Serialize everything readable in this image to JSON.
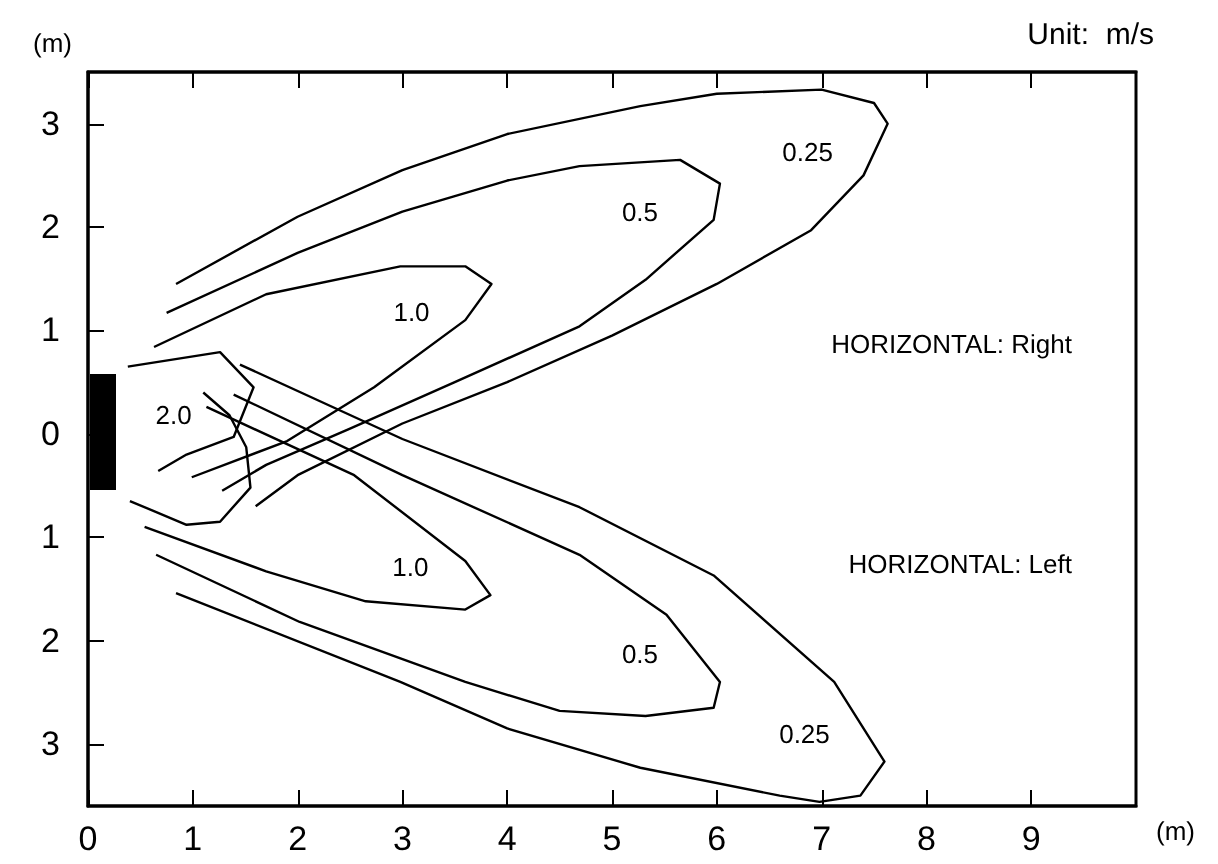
{
  "chart_data": {
    "type": "line",
    "xlabel": "(m)",
    "ylabel": "(m)",
    "marker": "none",
    "xlim": [
      0,
      10
    ],
    "xticks": [
      0,
      1,
      2,
      3,
      4,
      5,
      6,
      7,
      8,
      9
    ],
    "ylim": [
      -3.6,
      3.5
    ],
    "yticks": [
      {
        "value": -3,
        "label": "3"
      },
      {
        "value": -2,
        "label": "2"
      },
      {
        "value": -1,
        "label": "1"
      },
      0,
      1,
      2,
      3
    ],
    "series": [
      {
        "name": "0.25",
        "color": "#000000",
        "x": [
          0.84,
          2.0,
          3.0,
          4.0,
          5.27,
          6.0,
          7.0,
          7.5,
          7.63,
          7.4,
          6.9,
          6.0,
          5.0,
          4.0,
          3.0,
          2.0,
          1.6
        ],
        "values": [
          1.45,
          2.1,
          2.55,
          2.9,
          3.17,
          3.29,
          3.33,
          3.2,
          3.0,
          2.5,
          1.97,
          1.45,
          0.95,
          0.5,
          0.1,
          -0.4,
          -0.7
        ]
      },
      {
        "name": "0.5",
        "color": "#000000",
        "x": [
          0.75,
          2.0,
          3.0,
          4.0,
          4.69,
          5.65,
          6.03,
          5.97,
          5.32,
          4.69,
          3.5,
          2.5,
          1.7,
          1.28
        ],
        "values": [
          1.17,
          1.75,
          2.15,
          2.45,
          2.59,
          2.65,
          2.42,
          2.07,
          1.49,
          1.04,
          0.5,
          0.05,
          -0.3,
          -0.55
        ]
      },
      {
        "name": "1.0",
        "color": "#000000",
        "x": [
          0.63,
          1.7,
          2.98,
          3.6,
          3.85,
          3.6,
          2.73,
          1.9,
          0.99
        ],
        "values": [
          0.84,
          1.35,
          1.62,
          1.62,
          1.45,
          1.1,
          0.45,
          -0.07,
          -0.42
        ]
      },
      {
        "name": "2.0",
        "color": "#000000",
        "x": [
          0.38,
          1.26,
          1.58,
          1.39,
          0.94,
          0.67
        ],
        "values": [
          0.65,
          0.79,
          0.45,
          -0.03,
          -0.2,
          -0.36
        ]
      },
      {
        "color": "#000000",
        "x": [
          1.1,
          1.35,
          1.51,
          1.55,
          1.26,
          0.94,
          0.4
        ],
        "values": [
          0.4,
          0.18,
          -0.13,
          -0.52,
          -0.85,
          -0.88,
          -0.65
        ]
      },
      {
        "name": "1.0",
        "color": "#000000",
        "x": [
          1.13,
          2.54,
          3.6,
          3.84,
          3.6,
          2.65,
          1.7,
          0.54
        ],
        "values": [
          0.26,
          -0.4,
          -1.23,
          -1.56,
          -1.7,
          -1.62,
          -1.33,
          -0.9
        ]
      },
      {
        "name": "0.5",
        "color": "#000000",
        "x": [
          1.39,
          3.0,
          4.69,
          5.52,
          6.03,
          5.97,
          5.32,
          4.5,
          3.6,
          2.02,
          0.65
        ],
        "values": [
          0.38,
          -0.4,
          -1.17,
          -1.75,
          -2.4,
          -2.65,
          -2.73,
          -2.68,
          -2.4,
          -1.82,
          -1.17
        ]
      },
      {
        "name": "0.25",
        "color": "#000000",
        "x": [
          1.45,
          3.0,
          4.69,
          5.97,
          7.12,
          7.6,
          7.37,
          6.98,
          6.6,
          5.27,
          4.0,
          2.98,
          0.84
        ],
        "values": [
          0.67,
          -0.05,
          -0.71,
          -1.37,
          -2.4,
          -3.17,
          -3.5,
          -3.56,
          -3.5,
          -3.23,
          -2.85,
          -2.4,
          -1.54
        ]
      }
    ],
    "annotations": [
      "Unit:  m/s",
      "HORIZONTAL: Right",
      "HORIZONTAL: Left"
    ]
  }
}
